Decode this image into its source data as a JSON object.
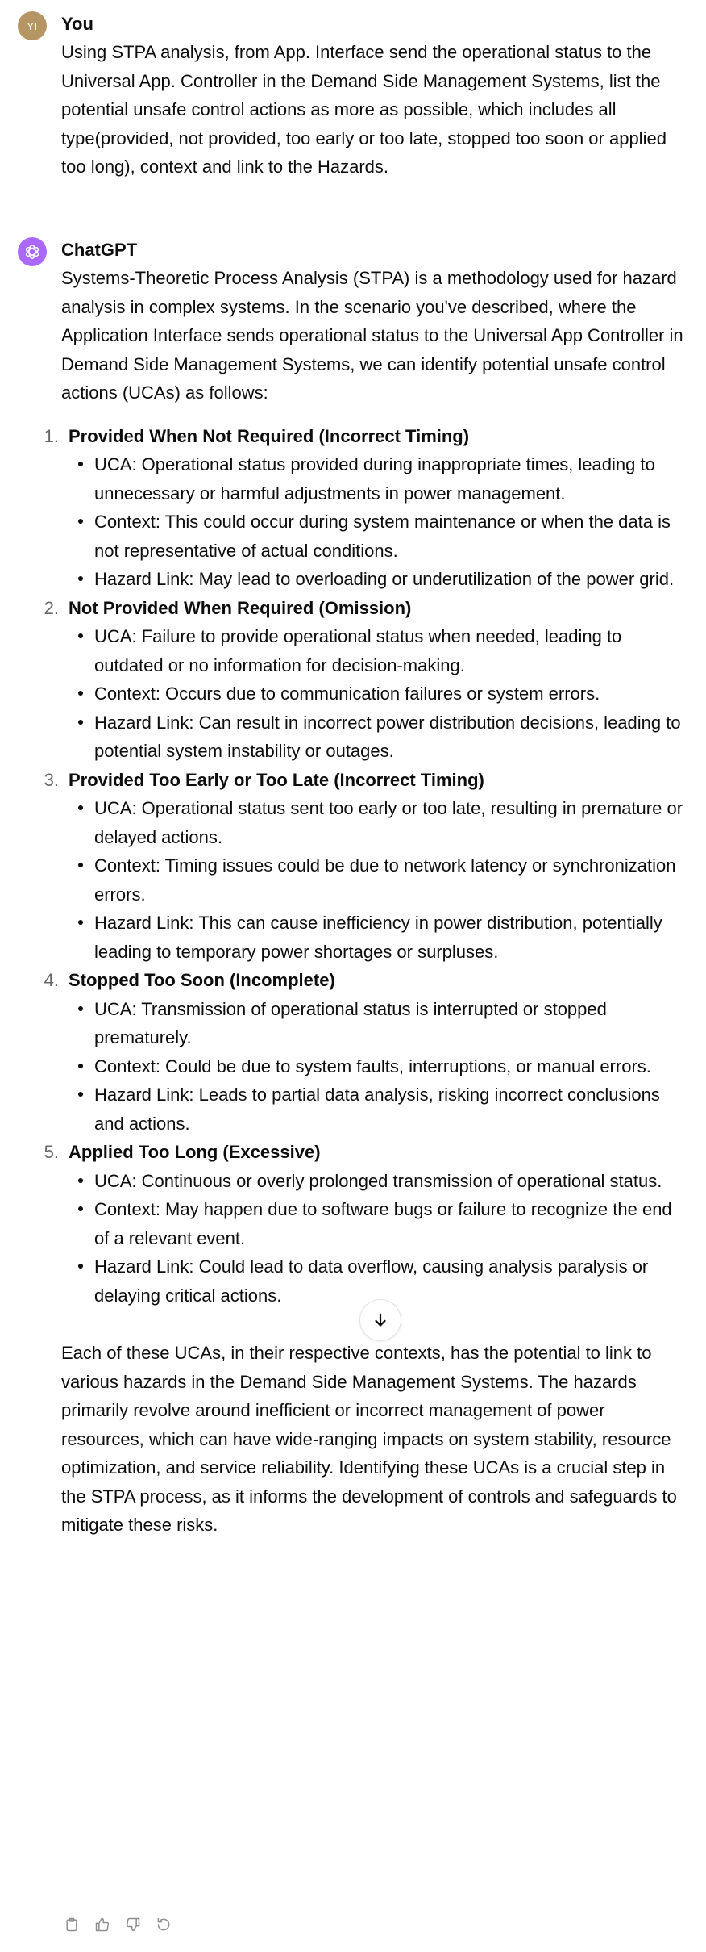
{
  "user_message": {
    "avatar_initials": "YI",
    "author": "You",
    "text": "Using STPA analysis, from App. Interface send the operational status to the Universal App. Controller in the Demand Side Management Systems, list the potential unsafe control actions as more as possible, which includes all type(provided, not provided, too early or too late, stopped too soon or applied too long), context and link to the Hazards."
  },
  "assistant_message": {
    "author": "ChatGPT",
    "avatar_icon": "openai-logo-icon",
    "intro": "Systems-Theoretic Process Analysis (STPA) is a methodology used for hazard analysis in complex systems. In the scenario you've described, where the Application Interface sends operational status to the Universal App Controller in Demand Side Management Systems, we can identify potential unsafe control actions (UCAs) as follows:",
    "items": [
      {
        "number": "1.",
        "title": "Provided When Not Required (Incorrect Timing)",
        "uca": "UCA: Operational status provided during inappropriate times, leading to unnecessary or harmful adjustments in power management.",
        "context": "Context: This could occur during system maintenance or when the data is not representative of actual conditions.",
        "hazard": "Hazard Link: May lead to overloading or underutilization of the power grid."
      },
      {
        "number": "2.",
        "title": "Not Provided When Required (Omission)",
        "uca": "UCA: Failure to provide operational status when needed, leading to outdated or no information for decision-making.",
        "context": "Context: Occurs due to communication failures or system errors.",
        "hazard": "Hazard Link: Can result in incorrect power distribution decisions, leading to potential system instability or outages."
      },
      {
        "number": "3.",
        "title": "Provided Too Early or Too Late (Incorrect Timing)",
        "uca": "UCA: Operational status sent too early or too late, resulting in premature or delayed actions.",
        "context": "Context: Timing issues could be due to network latency or synchronization errors.",
        "hazard": "Hazard Link: This can cause inefficiency in power distribution, potentially leading to temporary power shortages or surpluses."
      },
      {
        "number": "4.",
        "title": "Stopped Too Soon (Incomplete)",
        "uca": "UCA: Transmission of operational status is interrupted or stopped prematurely.",
        "context": "Context: Could be due to system faults, interruptions, or manual errors.",
        "hazard": "Hazard Link: Leads to partial data analysis, risking incorrect conclusions and actions."
      },
      {
        "number": "5.",
        "title": "Applied Too Long (Excessive)",
        "uca": "UCA: Continuous or overly prolonged transmission of operational status.",
        "context": "Context: May happen due to software bugs or failure to recognize the end of a relevant event.",
        "hazard": "Hazard Link: Could lead to data overflow, causing analysis paralysis or delaying critical actions."
      }
    ],
    "conclusion": "Each of these UCAs, in their respective contexts, has the potential to link to various hazards in the Demand Side Management Systems. The hazards primarily revolve around inefficient or incorrect management of power resources, which can have wide-ranging impacts on system stability, resource optimization, and service reliability. Identifying these UCAs is a crucial step in the STPA process, as it informs the development of controls and safeguards to mitigate these risks.",
    "action_icons": [
      "copy-icon",
      "thumbs-up-icon",
      "thumbs-down-icon",
      "regenerate-icon"
    ]
  },
  "scroll_button": {
    "icon": "arrow-down-icon"
  },
  "colors": {
    "user_avatar": "#b59563",
    "assistant_avatar": "#ab68ff",
    "text": "#0d0d0d",
    "muted": "#676767"
  }
}
